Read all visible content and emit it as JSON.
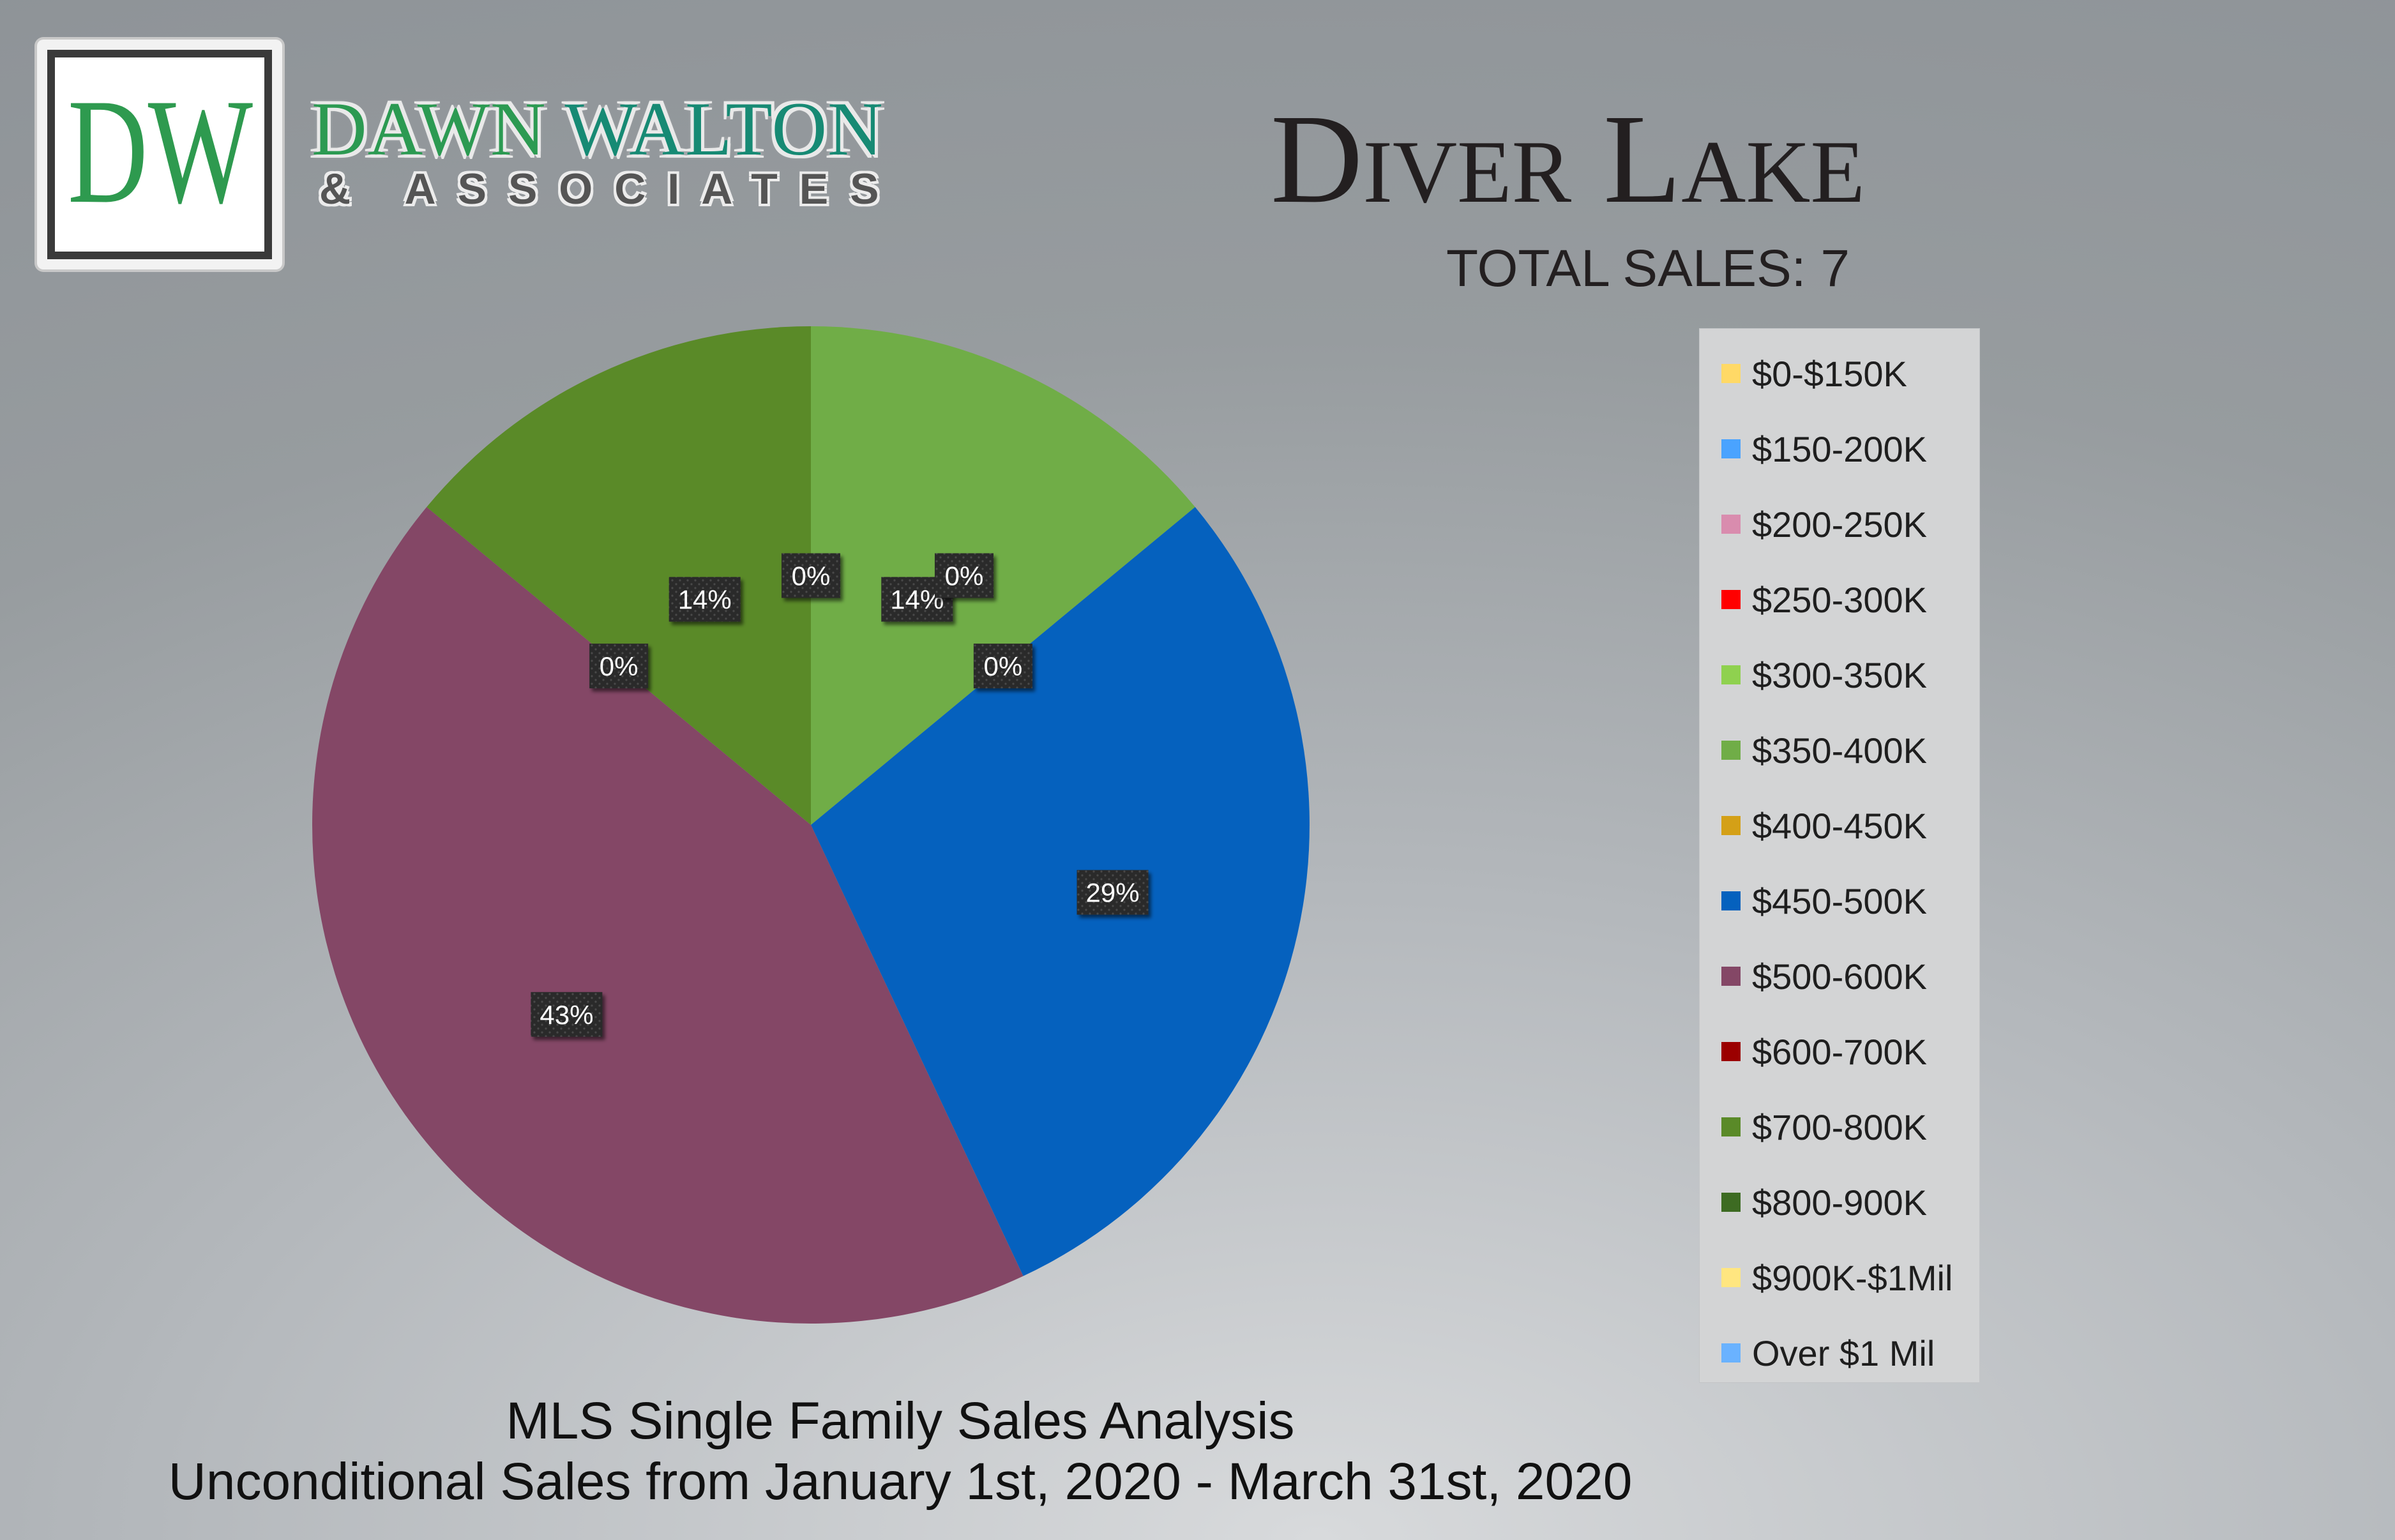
{
  "brand": {
    "logo_letters": "DW",
    "name_part1": "DAWN ",
    "name_part2": "WALTON",
    "tagline": "& ASSOCIATES"
  },
  "header": {
    "title": "Diver Lake",
    "total_sales": "TOTAL SALES: 7"
  },
  "footer": {
    "line1": "MLS Single Family Sales Analysis",
    "line2": "Unconditional Sales from January 1st, 2020 - March 31st, 2020"
  },
  "chart_data": {
    "type": "pie",
    "legend_position": "right",
    "slices": [
      {
        "label": "$0-$150K",
        "value": 0,
        "color": "#ffd966",
        "data_label": ""
      },
      {
        "label": "$150-200K",
        "value": 0,
        "color": "#4aa3ff",
        "data_label": ""
      },
      {
        "label": "$200-250K",
        "value": 0,
        "color": "#d98cae",
        "data_label": ""
      },
      {
        "label": "$250-300K",
        "value": 0,
        "color": "#ff0000",
        "data_label": ""
      },
      {
        "label": "$300-350K",
        "value": 0,
        "color": "#8fd14f",
        "data_label": "0%"
      },
      {
        "label": "$350-400K",
        "value": 14,
        "color": "#70ad47",
        "data_label": "14%"
      },
      {
        "label": "$400-450K",
        "value": 0,
        "color": "#d4a017",
        "data_label": "0%"
      },
      {
        "label": "$450-500K",
        "value": 29,
        "color": "#0561be",
        "data_label": "29%"
      },
      {
        "label": "$500-600K",
        "value": 43,
        "color": "#844766",
        "data_label": "43%"
      },
      {
        "label": "$600-700K",
        "value": 0,
        "color": "#9b0000",
        "data_label": "0%"
      },
      {
        "label": "$700-800K",
        "value": 14,
        "color": "#5a8a28",
        "data_label": "14%"
      },
      {
        "label": "$800-900K",
        "value": 0,
        "color": "#3d6b22",
        "data_label": "0%"
      },
      {
        "label": "$900K-$1Mil",
        "value": 0,
        "color": "#ffe680",
        "data_label": ""
      },
      {
        "label": "Over $1 Mil",
        "value": 0,
        "color": "#6ab2ff",
        "data_label": ""
      }
    ]
  }
}
